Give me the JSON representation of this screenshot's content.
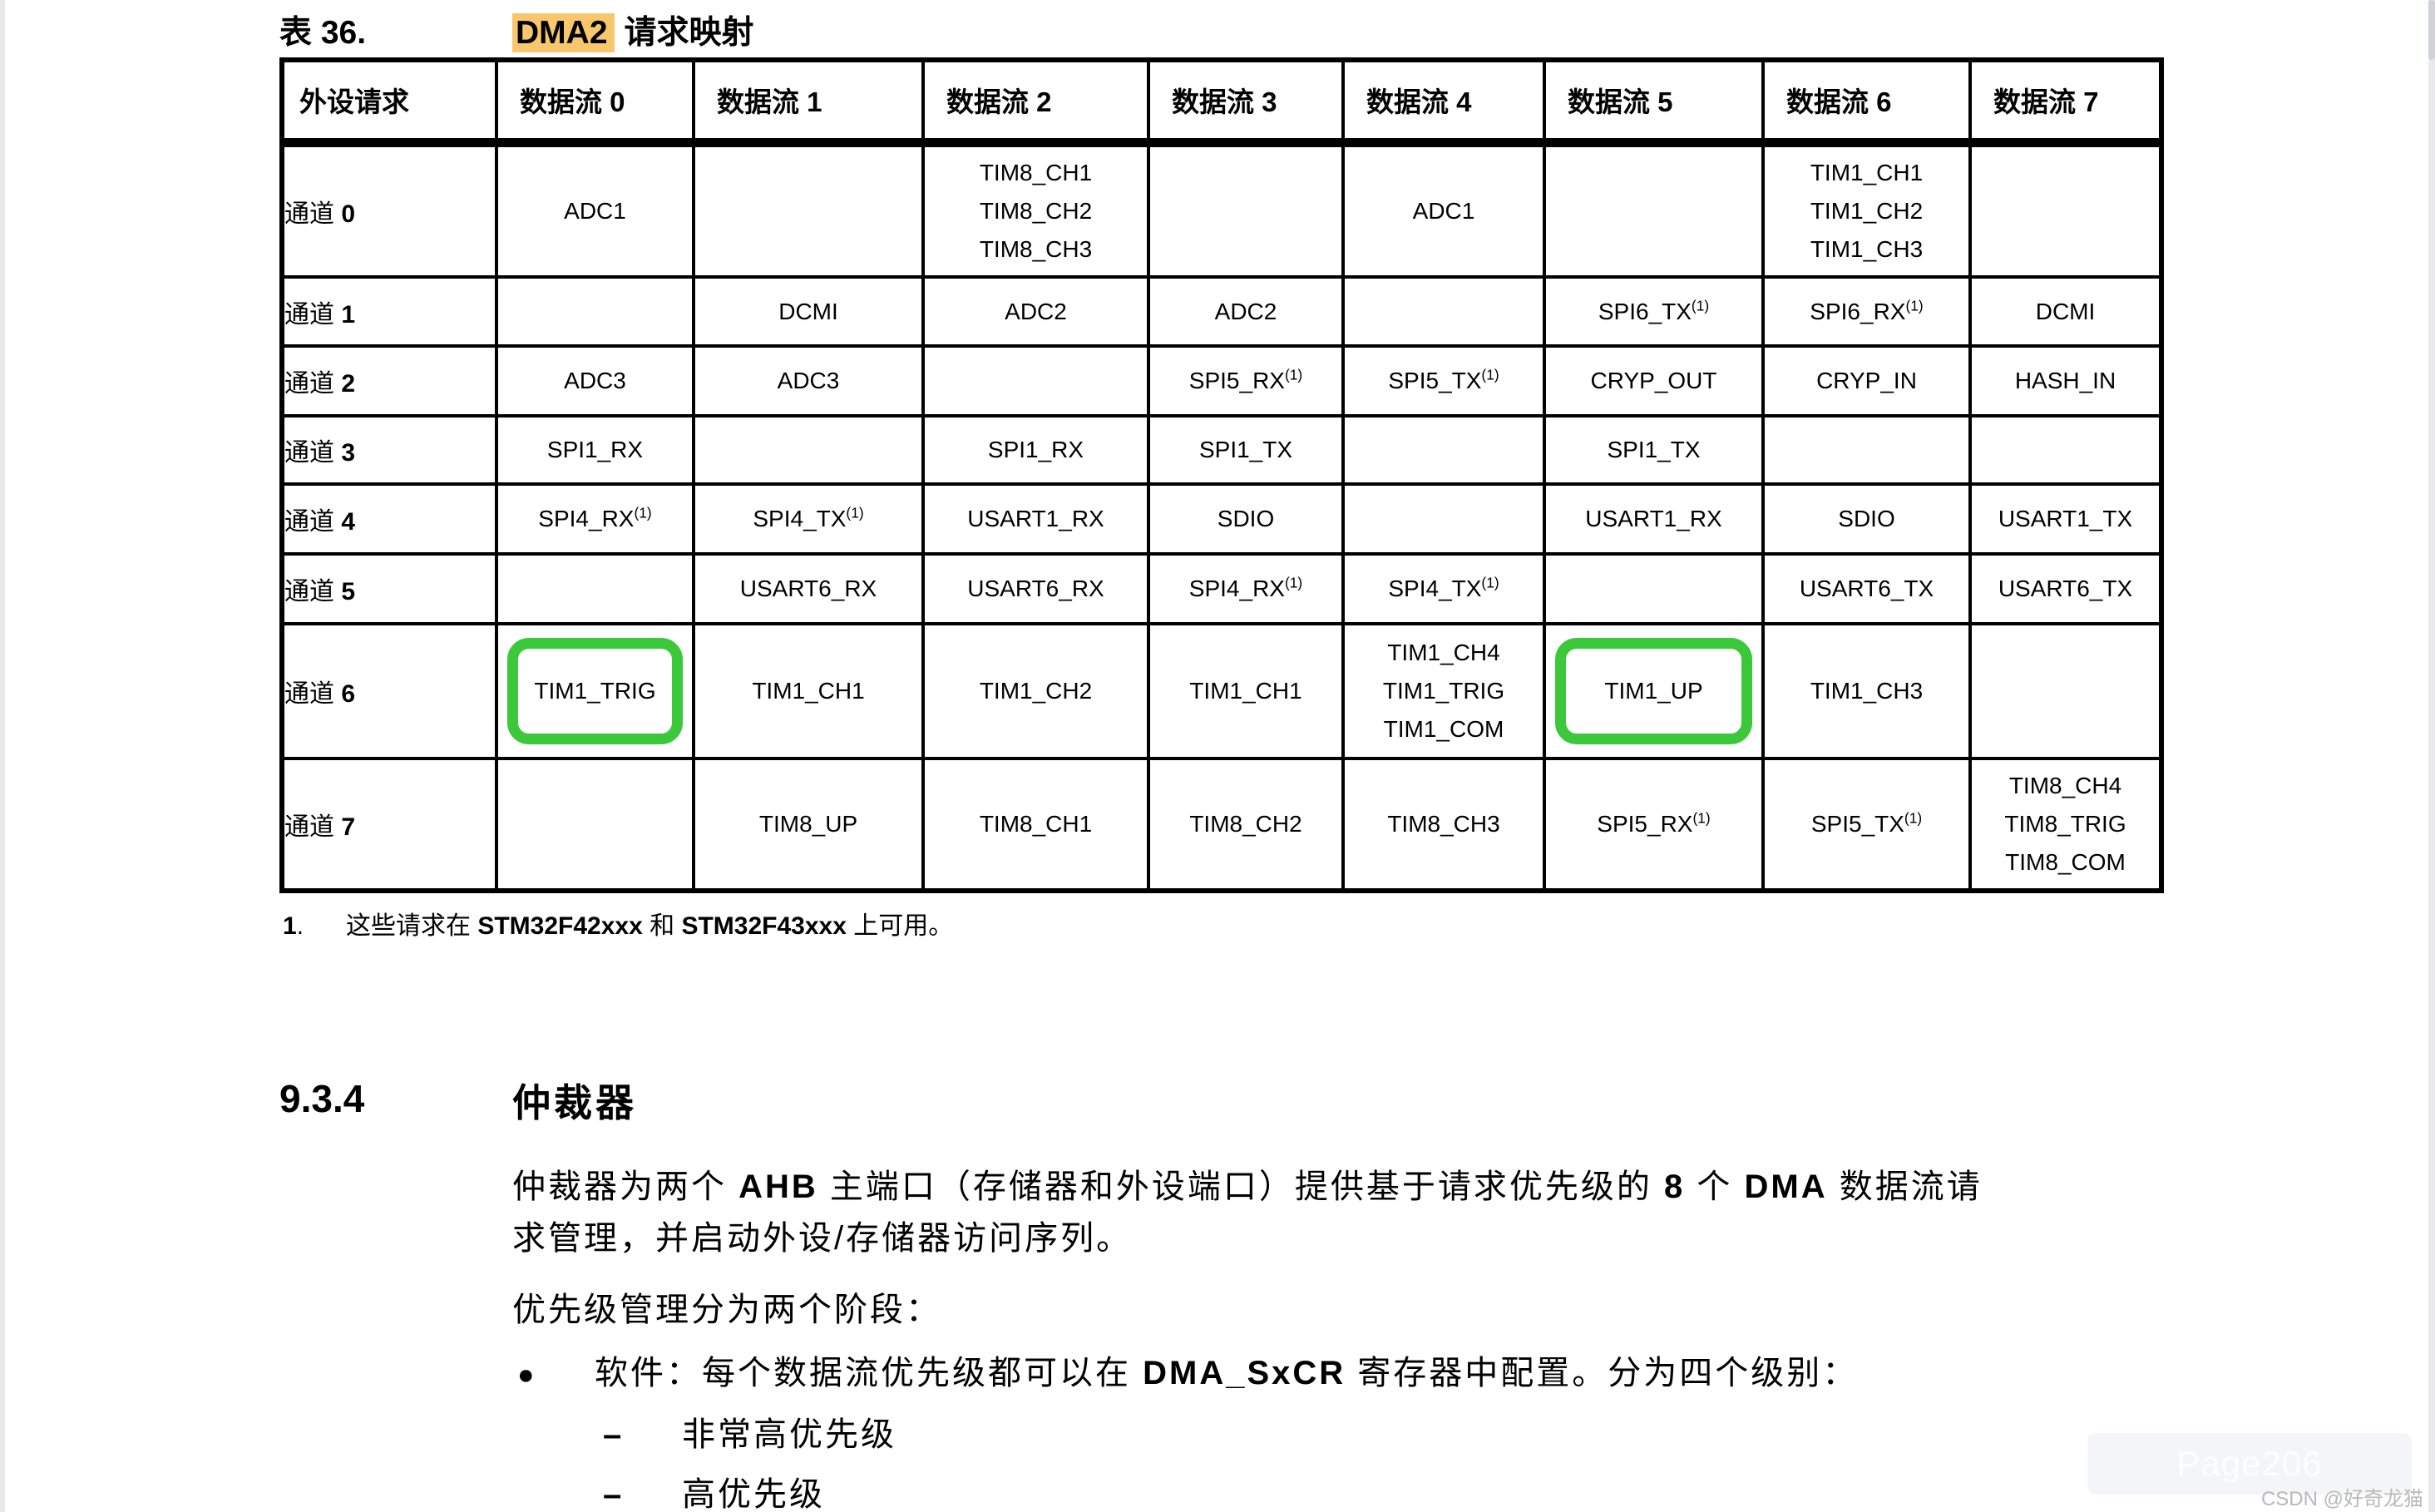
{
  "page": {
    "title_prefix": "表 36.",
    "title_highlight": "DMA2",
    "title_suffix": "请求映射"
  },
  "colors": {
    "highlight_bg": "#f8c76d",
    "green_box_border": "#3bc83b"
  },
  "table": {
    "headers": [
      "外设请求",
      "数据流 0",
      "数据流 1",
      "数据流 2",
      "数据流 3",
      "数据流 4",
      "数据流 5",
      "数据流 6",
      "数据流 7"
    ],
    "rows": [
      {
        "label": "通道 0",
        "cells": [
          [
            "ADC1"
          ],
          [],
          [
            "TIM8_CH1",
            "TIM8_CH2",
            "TIM8_CH3"
          ],
          [],
          [
            "ADC1"
          ],
          [],
          [
            "TIM1_CH1",
            "TIM1_CH2",
            "TIM1_CH3"
          ],
          []
        ]
      },
      {
        "label": "通道 1",
        "cells": [
          [],
          [
            "DCMI"
          ],
          [
            "ADC2"
          ],
          [
            "ADC2"
          ],
          [],
          [
            "SPI6_TX^(1)"
          ],
          [
            "SPI6_RX^(1)"
          ],
          [
            "DCMI"
          ]
        ]
      },
      {
        "label": "通道 2",
        "cells": [
          [
            "ADC3"
          ],
          [
            "ADC3"
          ],
          [],
          [
            "SPI5_RX^(1)"
          ],
          [
            "SPI5_TX^(1)"
          ],
          [
            "CRYP_OUT"
          ],
          [
            "CRYP_IN"
          ],
          [
            "HASH_IN"
          ]
        ]
      },
      {
        "label": "通道 3",
        "cells": [
          [
            "SPI1_RX"
          ],
          [],
          [
            "SPI1_RX"
          ],
          [
            "SPI1_TX"
          ],
          [],
          [
            "SPI1_TX"
          ],
          [],
          []
        ]
      },
      {
        "label": "通道 4",
        "cells": [
          [
            "SPI4_RX^(1)"
          ],
          [
            "SPI4_TX^(1)"
          ],
          [
            "USART1_RX"
          ],
          [
            "SDIO"
          ],
          [],
          [
            "USART1_RX"
          ],
          [
            "SDIO"
          ],
          [
            "USART1_TX"
          ]
        ]
      },
      {
        "label": "通道 5",
        "cells": [
          [],
          [
            "USART6_RX"
          ],
          [
            "USART6_RX"
          ],
          [
            "SPI4_RX^(1)"
          ],
          [
            "SPI4_TX^(1)"
          ],
          [],
          [
            "USART6_TX"
          ],
          [
            "USART6_TX"
          ]
        ]
      },
      {
        "label": "通道 6",
        "cells": [
          [
            "TIM1_TRIG"
          ],
          [
            "TIM1_CH1"
          ],
          [
            "TIM1_CH2"
          ],
          [
            "TIM1_CH1"
          ],
          [
            "TIM1_CH4",
            "TIM1_TRIG",
            "TIM1_COM"
          ],
          [
            "TIM1_UP"
          ],
          [
            "TIM1_CH3"
          ],
          []
        ]
      },
      {
        "label": "通道 7",
        "cells": [
          [],
          [
            "TIM8_UP"
          ],
          [
            "TIM8_CH1"
          ],
          [
            "TIM8_CH2"
          ],
          [
            "TIM8_CH3"
          ],
          [
            "SPI5_RX^(1)"
          ],
          [
            "SPI5_TX^(1)"
          ],
          [
            "TIM8_CH4",
            "TIM8_TRIG",
            "TIM8_COM"
          ]
        ]
      }
    ],
    "green_boxes": [
      {
        "row": 6,
        "col": 0
      },
      {
        "row": 6,
        "col": 5
      }
    ],
    "footnote_number": "1.",
    "footnote_text": "这些请求在 STM32F42xxx 和 STM32F43xxx 上可用。"
  },
  "section": {
    "number": "9.3.4",
    "heading": "仲裁器",
    "para1_line1": "仲裁器为两个 AHB 主端口（存储器和外设端口）提供基于请求优先级的 8 个 DMA 数据流请",
    "para1_line2": "求管理，并启动外设/存储器访问序列。",
    "para2": "优先级管理分为两个阶段：",
    "bullet_marker": "●",
    "bullet_text": "软件：每个数据流优先级都可以在 DMA_SxCR 寄存器中配置。分为四个级别：",
    "dash": "–",
    "sub_item1": "非常高优先级",
    "sub_item2": "高优先级"
  },
  "watermark": {
    "page_label": "Page206",
    "credit": "CSDN @好奇龙猫"
  }
}
